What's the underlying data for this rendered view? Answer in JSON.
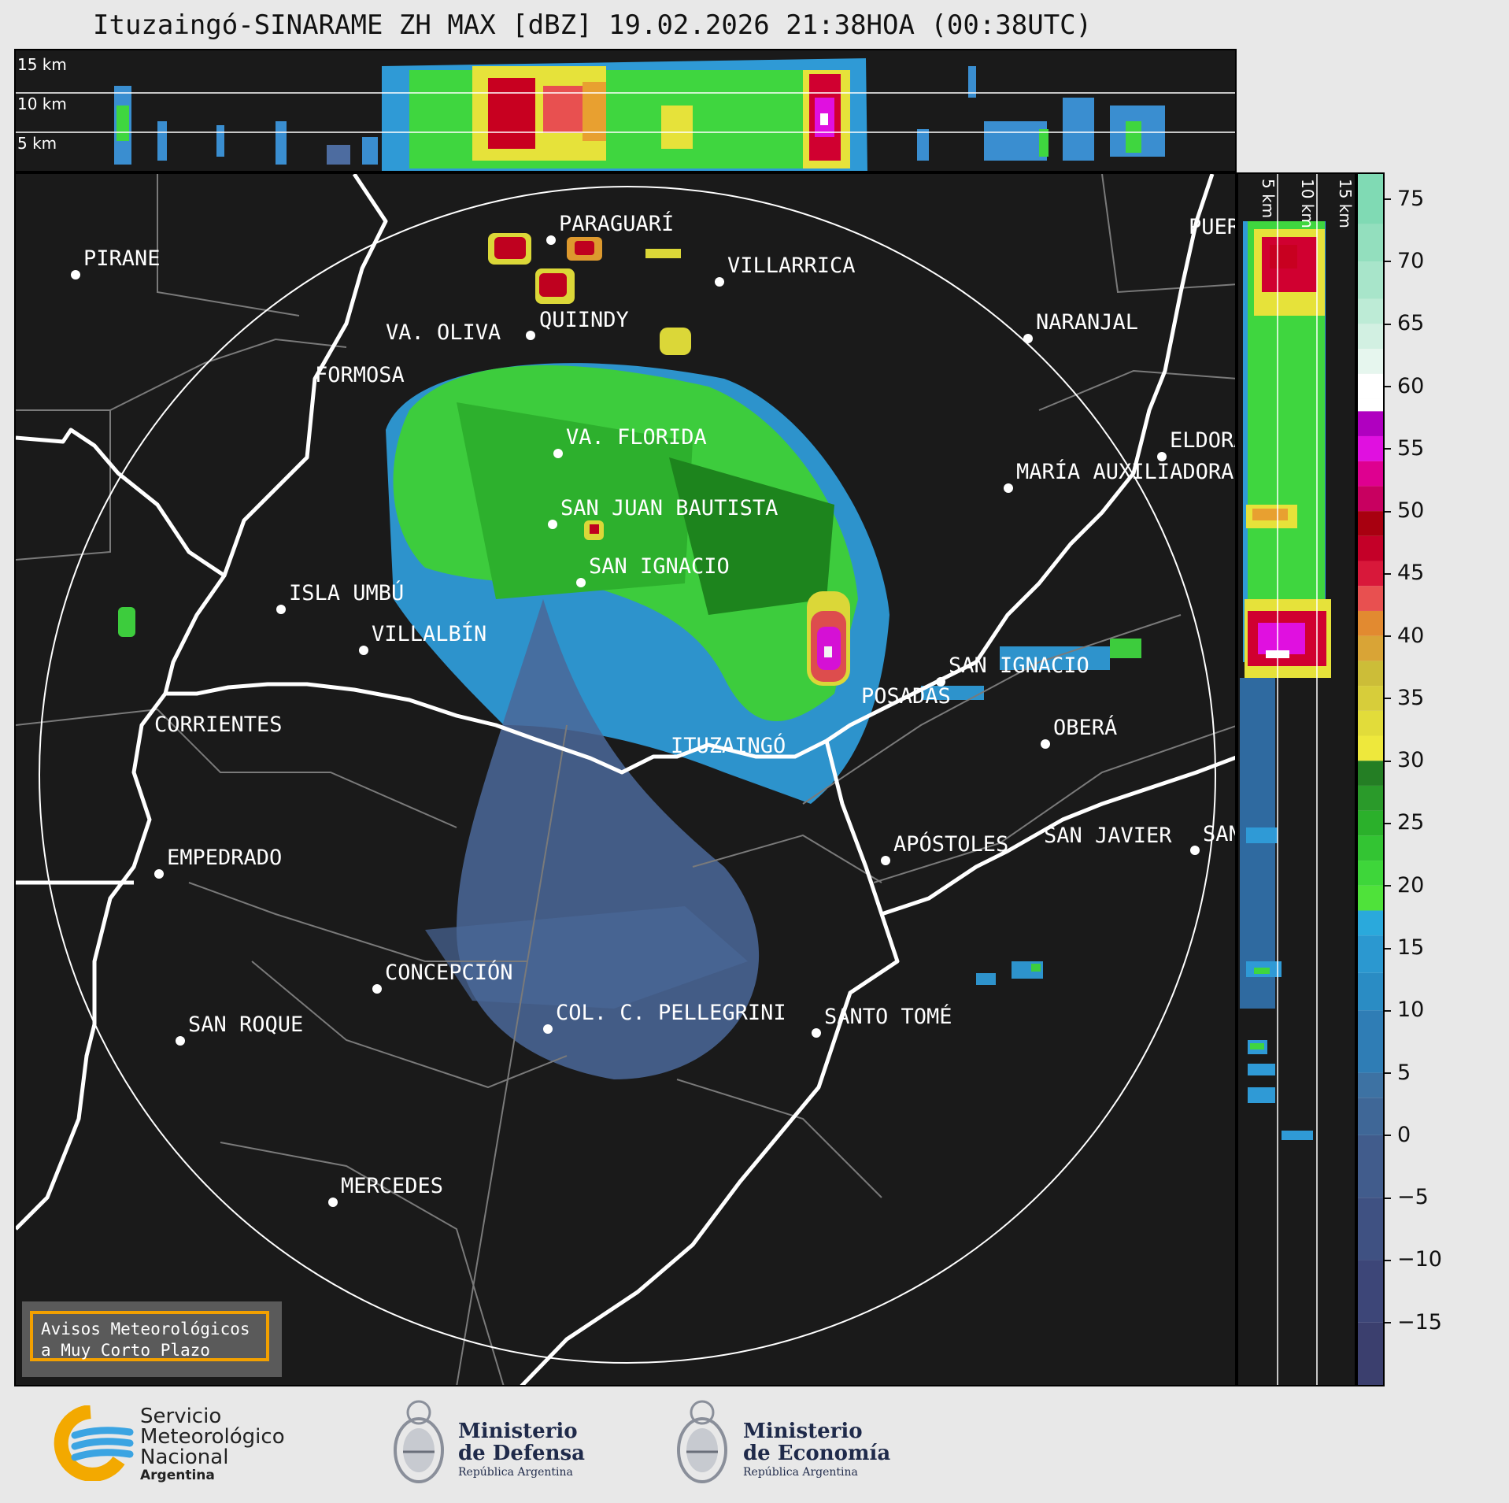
{
  "title": "Ituzaingó-SINARAME ZH MAX [dBZ] 19.02.2026 21:38HOA (00:38UTC)",
  "top_panel": {
    "labels": [
      "15 km",
      "10 km",
      "5 km"
    ]
  },
  "right_panel": {
    "labels": [
      "5 km",
      "10 km",
      "15 km"
    ]
  },
  "cities": [
    {
      "name": "PIRANE"
    },
    {
      "name": "PARAGUARÍ"
    },
    {
      "name": "VILLARRICA"
    },
    {
      "name": "QUIINDY"
    },
    {
      "name": "VA. OLIVA"
    },
    {
      "name": "NARANJAL"
    },
    {
      "name": "FORMOSA"
    },
    {
      "name": "VA. FLORIDA"
    },
    {
      "name": "ELDORADO"
    },
    {
      "name": "MARÍA AUXILIADORA"
    },
    {
      "name": "SAN JUAN BAUTISTA"
    },
    {
      "name": "SAN IGNACIO"
    },
    {
      "name": "ISLA UMBÚ"
    },
    {
      "name": "VILLALBÍN"
    },
    {
      "name": "SAN IGNACIO"
    },
    {
      "name": "POSADAS"
    },
    {
      "name": "CORRIENTES"
    },
    {
      "name": "ITUZAINGÓ"
    },
    {
      "name": "OBERÁ"
    },
    {
      "name": "EMPEDRADO"
    },
    {
      "name": "APÓSTOLES"
    },
    {
      "name": "SAN JAVIER"
    },
    {
      "name": "SAN"
    },
    {
      "name": "CONCEPCIÓN"
    },
    {
      "name": "COL. C. PELLEGRINI"
    },
    {
      "name": "SANTO TOMÉ"
    },
    {
      "name": "SAN ROQUE"
    },
    {
      "name": "MERCEDES"
    },
    {
      "name": "PUERTO"
    }
  ],
  "aviso": {
    "line1": "Avisos Meteorológicos",
    "line2": "a Muy Corto Plazo"
  },
  "colorbar": {
    "ticks": [
      "75",
      "70",
      "65",
      "60",
      "55",
      "50",
      "45",
      "40",
      "35",
      "30",
      "25",
      "20",
      "15",
      "10",
      "5",
      "0",
      "−5",
      "−10",
      "−15"
    ],
    "range": [
      -20,
      77
    ]
  },
  "logos": {
    "smn": {
      "line1": "Servicio",
      "line2": "Meteorológico",
      "line3": "Nacional",
      "line4": "Argentina"
    },
    "defensa": {
      "line1": "Ministerio",
      "line2": "de Defensa",
      "line3": "República Argentina"
    },
    "economia": {
      "line1": "Ministerio",
      "line2": "de Economía",
      "line3": "República Argentina"
    }
  },
  "colors": {
    "background": "#1a1a1a",
    "border": "#ffffff",
    "aviso_border": "#f2a000"
  }
}
